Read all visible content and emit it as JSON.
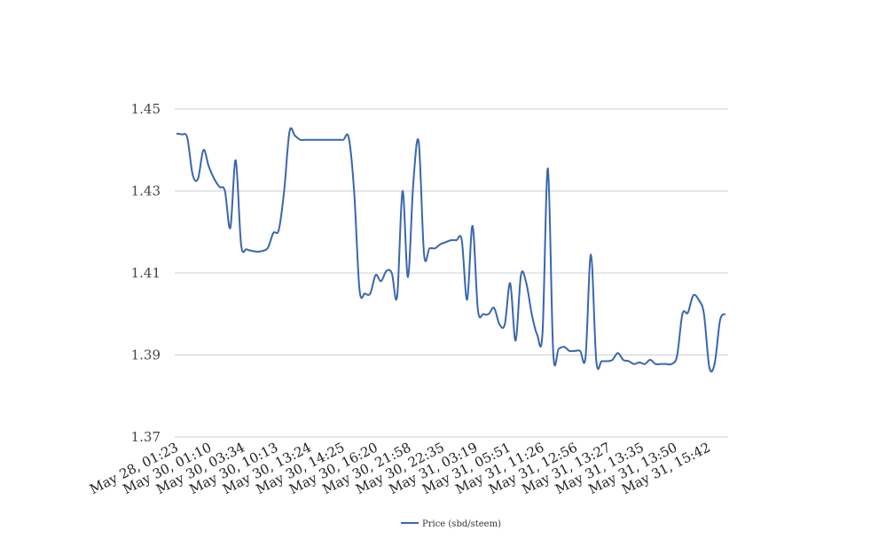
{
  "chart_data": {
    "type": "line",
    "title": "",
    "xlabel": "",
    "ylabel": "",
    "ylim": [
      1.37,
      1.45
    ],
    "y_ticks": [
      "1.45",
      "1.43",
      "1.41",
      "1.39",
      "1.37"
    ],
    "x_tick_labels": [
      "May 28, 01:23",
      "May 30, 01:10",
      "May 30, 03:34",
      "May 30, 10:13",
      "May 30, 13:24",
      "May 30, 14:25",
      "May 30, 16:20",
      "May 30, 21:58",
      "May 30, 22:35",
      "May 31, 03:19",
      "May 31, 05:51",
      "May 31, 11:26",
      "May 31, 12:56",
      "May 31, 13:27",
      "May 31, 13:35",
      "May 31, 13:50",
      "May 31, 15:42"
    ],
    "grid": true,
    "legend": {
      "placement": "bottom-center"
    },
    "series": [
      {
        "name": "Price (sbd/steem)",
        "color": "#3a66b0",
        "values": [
          1.444,
          1.4438,
          1.443,
          1.434,
          1.433,
          1.44,
          1.436,
          1.433,
          1.431,
          1.43,
          1.421,
          1.4375,
          1.417,
          1.4158,
          1.4154,
          1.4152,
          1.4154,
          1.4162,
          1.4198,
          1.4205,
          1.43,
          1.4445,
          1.4435,
          1.4425,
          1.4425,
          1.4425,
          1.4425,
          1.4425,
          1.4425,
          1.4425,
          1.4425,
          1.4425,
          1.443,
          1.43,
          1.406,
          1.405,
          1.405,
          1.4095,
          1.408,
          1.4105,
          1.41,
          1.4043,
          1.43,
          1.409,
          1.432,
          1.442,
          1.4145,
          1.416,
          1.416,
          1.417,
          1.4175,
          1.418,
          1.418,
          1.418,
          1.4035,
          1.4215,
          1.401,
          1.4,
          1.4,
          1.4015,
          1.3975,
          1.3975,
          1.4075,
          1.3935,
          1.4095,
          1.4075,
          1.4,
          1.395,
          1.3953,
          1.4355,
          1.3905,
          1.3915,
          1.392,
          1.391,
          1.391,
          1.391,
          1.3895,
          1.4145,
          1.3885,
          1.3885,
          1.3885,
          1.3888,
          1.3905,
          1.3888,
          1.3885,
          1.3878,
          1.3882,
          1.3878,
          1.3888,
          1.3878,
          1.3878,
          1.3878,
          1.3878,
          1.3898,
          1.4,
          1.4003,
          1.4045,
          1.4035,
          1.4,
          1.387,
          1.388,
          1.3985,
          1.4
        ]
      }
    ]
  }
}
